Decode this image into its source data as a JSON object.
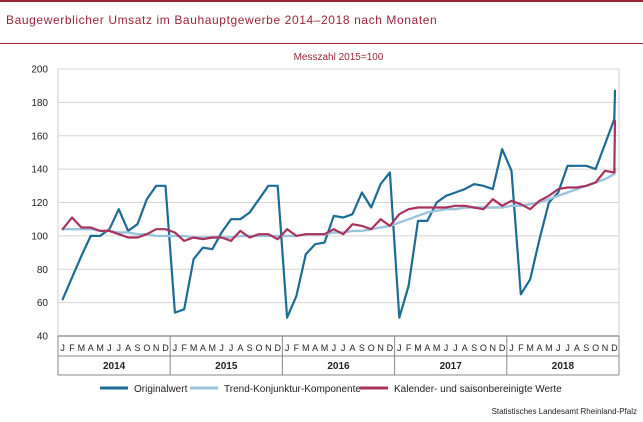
{
  "title": "Baugewerblicher Umsatz im Bauhauptgewerbe 2014–2018 nach Monaten",
  "source": "Statistisches Landesamt  Rheinland-Pfalz",
  "chart_data": {
    "type": "line",
    "subtitle": "Messzahl 2015=100",
    "ylim": [
      40,
      200
    ],
    "yticks": [
      40,
      60,
      80,
      100,
      120,
      140,
      160,
      180,
      200
    ],
    "grid": "horizontal",
    "legend_position": "bottom",
    "years": [
      "2014",
      "2015",
      "2016",
      "2017",
      "2018"
    ],
    "month_labels": [
      "J",
      "F",
      "M",
      "A",
      "M",
      "J",
      "J",
      "A",
      "S",
      "O",
      "N",
      "D"
    ],
    "series": [
      {
        "name": "Originalwert",
        "color": "#1b6b93",
        "values": [
          62,
          75,
          88,
          100,
          100,
          104,
          116,
          103,
          107,
          122,
          130,
          130,
          54,
          56,
          86,
          93,
          92,
          102,
          110,
          110,
          114,
          122,
          130,
          130,
          51,
          64,
          89,
          95,
          96,
          112,
          111,
          113,
          126,
          117,
          131,
          138,
          51,
          70,
          109,
          109,
          120,
          124,
          126,
          128,
          131,
          130,
          128,
          152,
          139,
          65,
          74,
          98,
          120,
          126,
          142,
          142,
          142,
          140,
          155,
          170,
          187
        ]
      },
      {
        "name": "Trend-Konjunktur-Komponente",
        "color": "#9cc3dd",
        "values": [
          104,
          104,
          104,
          104,
          103,
          103,
          102,
          102,
          101,
          101,
          100,
          100,
          100,
          100,
          99,
          99,
          99,
          99,
          99,
          100,
          100,
          100,
          100,
          100,
          100,
          100,
          101,
          101,
          101,
          102,
          102,
          103,
          103,
          104,
          105,
          106,
          108,
          110,
          112,
          114,
          115,
          116,
          116,
          117,
          117,
          117,
          117,
          117,
          118,
          118,
          119,
          120,
          122,
          124,
          126,
          128,
          130,
          132,
          134,
          137,
          140
        ]
      },
      {
        "name": "Kalender- und saisonbereinigte Werte",
        "color": "#a8325e",
        "values": [
          104,
          111,
          105,
          105,
          103,
          103,
          101,
          99,
          99,
          101,
          104,
          104,
          102,
          97,
          99,
          98,
          99,
          99,
          97,
          103,
          99,
          101,
          101,
          98,
          104,
          100,
          101,
          101,
          101,
          104,
          101,
          107,
          106,
          104,
          110,
          106,
          113,
          116,
          117,
          117,
          117,
          117,
          118,
          118,
          117,
          116,
          122,
          118,
          121,
          119,
          116,
          121,
          124,
          128,
          129,
          129,
          130,
          132,
          139,
          138,
          169
        ]
      }
    ]
  }
}
